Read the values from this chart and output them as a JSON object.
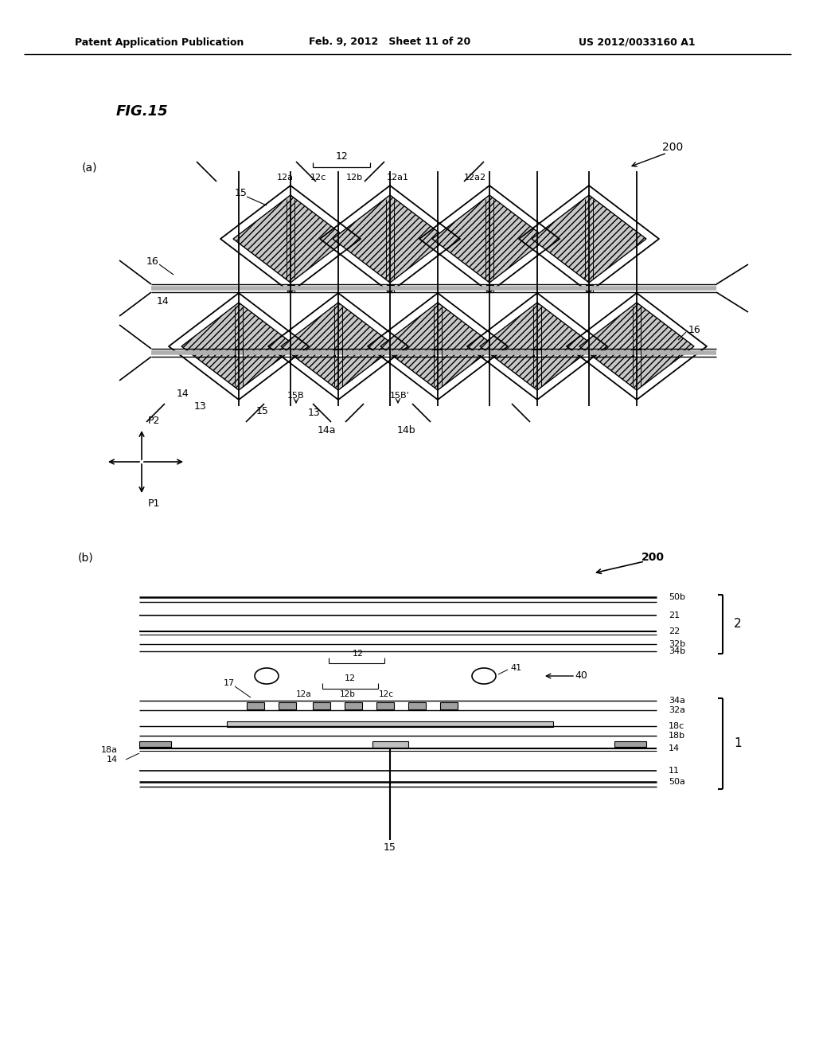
{
  "header_left": "Patent Application Publication",
  "header_mid": "Feb. 9, 2012   Sheet 11 of 20",
  "header_right": "US 2012/0033160 A1",
  "title": "FIG.15",
  "bg_color": "#ffffff"
}
